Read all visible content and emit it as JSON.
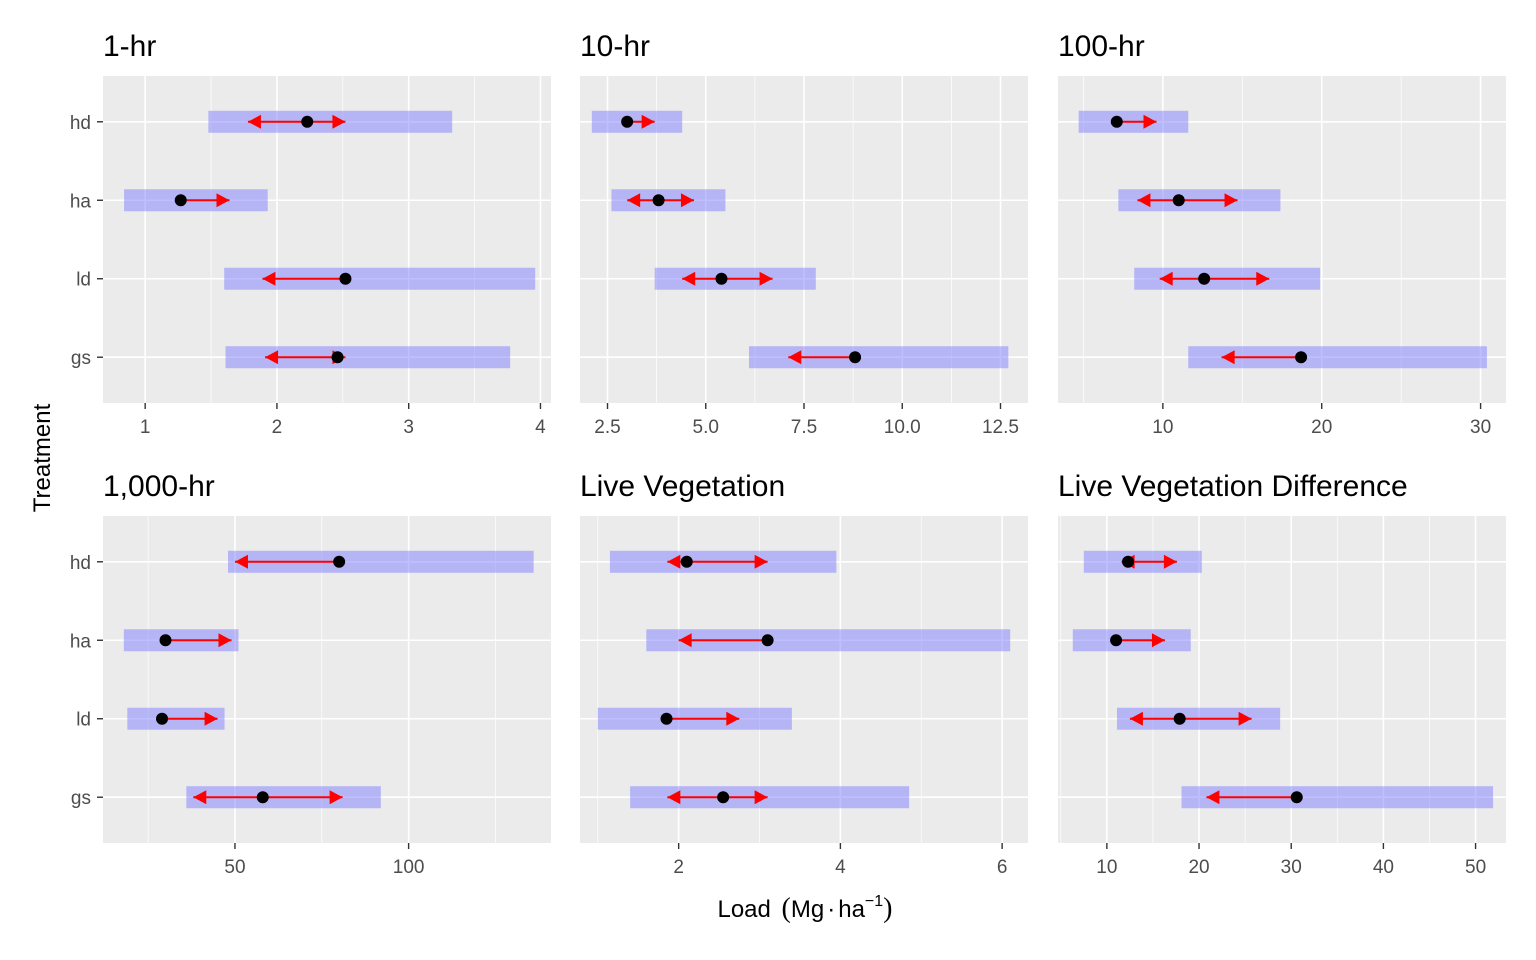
{
  "colors": {
    "panel_bg": "#ebebeb",
    "grid": "#ffffff",
    "range_bar": "#8080ff",
    "arrow": "#ff0000",
    "point": "#000000",
    "tick_text": "#4d4d4d"
  },
  "chart_data": {
    "type": "faceted-range-arrow",
    "ylabel": "Treatment",
    "xlabel_parts": {
      "text": "Load",
      "unit_main": "Mg",
      "unit_dot": "·",
      "unit_ha": "ha",
      "unit_exp": "−1"
    },
    "categories": [
      "hd",
      "ha",
      "ld",
      "gs"
    ],
    "facets": [
      {
        "title": "1-hr",
        "xlim": [
          0.68,
          4.08
        ],
        "ticks": [
          1,
          2,
          3,
          4
        ],
        "tick_labels": [
          "1",
          "2",
          "3",
          "4"
        ],
        "rows": [
          {
            "cat": "hd",
            "bar": [
              1.48,
              3.33
            ],
            "point": 2.23,
            "arrow": [
              1.78,
              2.52
            ]
          },
          {
            "cat": "ha",
            "bar": [
              0.84,
              1.93
            ],
            "point": 1.27,
            "arrow": [
              1.27,
              1.64
            ]
          },
          {
            "cat": "ld",
            "bar": [
              1.6,
              3.96
            ],
            "point": 2.52,
            "arrow": [
              1.89,
              2.52
            ]
          },
          {
            "cat": "gs",
            "bar": [
              1.61,
              3.77
            ],
            "point": 2.46,
            "arrow": [
              1.91,
              2.52
            ]
          }
        ]
      },
      {
        "title": "10-hr",
        "xlim": [
          1.8,
          13.2
        ],
        "ticks": [
          2.5,
          5.0,
          7.5,
          10.0,
          12.5
        ],
        "tick_labels": [
          "2.5",
          "5.0",
          "7.5",
          "10.0",
          "12.5"
        ],
        "rows": [
          {
            "cat": "hd",
            "bar": [
              2.1,
              4.4
            ],
            "point": 3.0,
            "arrow": [
              3.0,
              3.7
            ]
          },
          {
            "cat": "ha",
            "bar": [
              2.6,
              5.5
            ],
            "point": 3.8,
            "arrow": [
              3.0,
              4.7
            ]
          },
          {
            "cat": "ld",
            "bar": [
              3.7,
              7.8
            ],
            "point": 5.4,
            "arrow": [
              4.4,
              6.7
            ]
          },
          {
            "cat": "gs",
            "bar": [
              6.1,
              12.7
            ],
            "point": 8.8,
            "arrow": [
              7.1,
              8.8
            ]
          }
        ]
      },
      {
        "title": "100-hr",
        "xlim": [
          3.4,
          31.6
        ],
        "ticks": [
          10,
          20,
          30
        ],
        "tick_labels": [
          "10",
          "20",
          "30"
        ],
        "rows": [
          {
            "cat": "hd",
            "bar": [
              4.7,
              11.6
            ],
            "point": 7.1,
            "arrow": [
              7.1,
              9.6
            ]
          },
          {
            "cat": "ha",
            "bar": [
              7.2,
              17.4
            ],
            "point": 11.0,
            "arrow": [
              8.4,
              14.7
            ]
          },
          {
            "cat": "ld",
            "bar": [
              8.2,
              19.9
            ],
            "point": 12.6,
            "arrow": [
              9.8,
              16.7
            ]
          },
          {
            "cat": "gs",
            "bar": [
              11.6,
              30.4
            ],
            "point": 18.7,
            "arrow": [
              13.7,
              18.7
            ]
          }
        ]
      },
      {
        "title": "1,000-hr",
        "xlim": [
          12,
          141
        ],
        "ticks": [
          50,
          100
        ],
        "tick_labels": [
          "50",
          "100"
        ],
        "rows": [
          {
            "cat": "hd",
            "bar": [
              48,
              136
            ],
            "point": 80,
            "arrow": [
              50,
              80
            ]
          },
          {
            "cat": "ha",
            "bar": [
              18,
              51
            ],
            "point": 30,
            "arrow": [
              30,
              49
            ]
          },
          {
            "cat": "ld",
            "bar": [
              19,
              47
            ],
            "point": 29,
            "arrow": [
              29,
              45
            ]
          },
          {
            "cat": "gs",
            "bar": [
              36,
              92
            ],
            "point": 58,
            "arrow": [
              38,
              81
            ]
          }
        ]
      },
      {
        "title": "Live Vegetation",
        "xlim": [
          0.78,
          6.32
        ],
        "ticks": [
          2,
          4,
          6
        ],
        "tick_labels": [
          "2",
          "4",
          "6"
        ],
        "rows": [
          {
            "cat": "hd",
            "bar": [
              1.15,
              3.95
            ],
            "point": 2.1,
            "arrow": [
              1.86,
              3.1
            ]
          },
          {
            "cat": "ha",
            "bar": [
              1.6,
              6.1
            ],
            "point": 3.1,
            "arrow": [
              2.0,
              3.1
            ]
          },
          {
            "cat": "ld",
            "bar": [
              1.0,
              3.4
            ],
            "point": 1.85,
            "arrow": [
              1.85,
              2.75
            ]
          },
          {
            "cat": "gs",
            "bar": [
              1.4,
              4.85
            ],
            "point": 2.55,
            "arrow": [
              1.86,
              3.1
            ]
          }
        ]
      },
      {
        "title": "Live Vegetation Difference",
        "xlim": [
          4.7,
          53.3
        ],
        "ticks": [
          10,
          20,
          30,
          40,
          50
        ],
        "tick_labels": [
          "10",
          "20",
          "30",
          "40",
          "50"
        ],
        "rows": [
          {
            "cat": "hd",
            "bar": [
              7.5,
              20.3
            ],
            "point": 12.3,
            "arrow": [
              11.6,
              17.6
            ]
          },
          {
            "cat": "ha",
            "bar": [
              6.3,
              19.1
            ],
            "point": 11.0,
            "arrow": [
              11.0,
              16.3
            ]
          },
          {
            "cat": "ld",
            "bar": [
              11.1,
              28.8
            ],
            "point": 17.9,
            "arrow": [
              12.5,
              25.7
            ]
          },
          {
            "cat": "gs",
            "bar": [
              18.1,
              51.9
            ],
            "point": 30.6,
            "arrow": [
              20.8,
              30.6
            ]
          }
        ]
      }
    ]
  }
}
